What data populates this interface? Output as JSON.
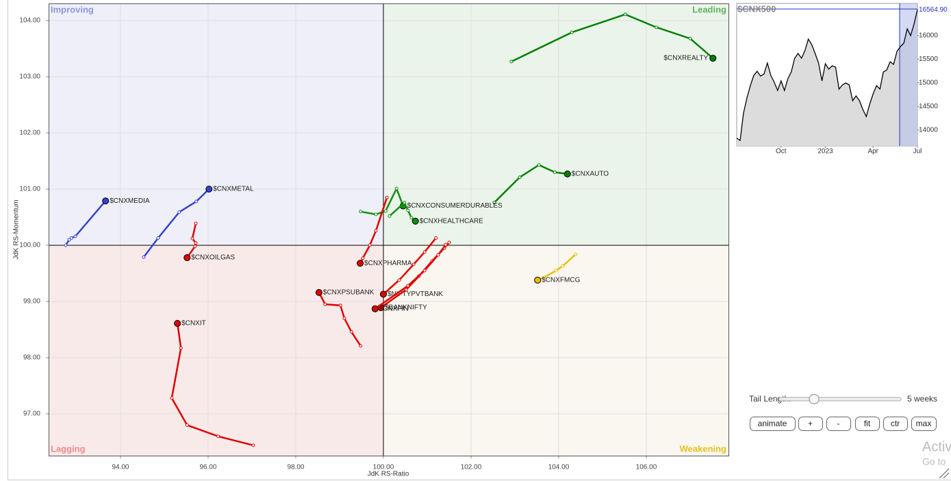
{
  "chart_data": [
    {
      "type": "rrg",
      "x_label": "JdK RS-Ratio",
      "y_label": "JdK RS-Momentum",
      "xlim": [
        92.36,
        107.875
      ],
      "ylim": [
        96.256,
        104.305
      ],
      "xticks": [
        {
          "value": 94,
          "label": "94.00"
        },
        {
          "value": 96,
          "label": "96.00"
        },
        {
          "value": 98,
          "label": "98.00"
        },
        {
          "value": 100,
          "label": "100.00"
        },
        {
          "value": 102,
          "label": "102.00"
        },
        {
          "value": 104,
          "label": "104.00"
        },
        {
          "value": 106,
          "label": "106.00"
        }
      ],
      "yticks": [
        {
          "value": 97,
          "label": "97.00"
        },
        {
          "value": 98,
          "label": "98.00"
        },
        {
          "value": 99,
          "label": "99.00"
        },
        {
          "value": 100,
          "label": "100.00"
        },
        {
          "value": 101,
          "label": "101.00"
        },
        {
          "value": 102,
          "label": "102.00"
        },
        {
          "value": 103,
          "label": "103.00"
        },
        {
          "value": 104,
          "label": "104.00"
        }
      ],
      "grid": true,
      "center": [
        100,
        100
      ],
      "quadrants": [
        "Improving",
        "Leading",
        "Lagging",
        "Weakening"
      ],
      "quadrant_colors": [
        "#8a96d8",
        "#5fb35f",
        "#f08a8a",
        "#e6c020"
      ],
      "quadrant_fills": [
        "#efeff9",
        "#ebf4eb",
        "#f9eaea",
        "#f9f7ef"
      ],
      "series": [
        {
          "name": "$CNXREALTY",
          "color": "#008000",
          "x": [
            102.92,
            104.3,
            105.52,
            106.23,
            107.0,
            107.52
          ],
          "y": [
            103.27,
            103.79,
            104.11,
            103.88,
            103.68,
            103.33
          ]
        },
        {
          "name": "$CNXAUTO",
          "color": "#008000",
          "x": [
            102.53,
            103.11,
            103.55,
            103.91,
            104.2
          ],
          "y": [
            100.76,
            101.21,
            101.43,
            101.3,
            101.27
          ]
        },
        {
          "name": "$CNXCONSUMERDURABLES",
          "color": "#109010",
          "x": [
            99.48,
            99.83,
            100.05,
            100.3,
            100.45
          ],
          "y": [
            100.6,
            100.55,
            100.61,
            101.01,
            100.7
          ]
        },
        {
          "name": "$CNXHEALTHCARE",
          "color": "#109010",
          "x": [
            100.14,
            100.48,
            100.56,
            100.64,
            100.73
          ],
          "y": [
            100.52,
            100.76,
            100.62,
            100.49,
            100.43
          ]
        },
        {
          "name": "$CNXMEDIA",
          "color": "#3344cc",
          "x": [
            92.75,
            92.83,
            92.88,
            92.97,
            93.66
          ],
          "y": [
            100.0,
            100.1,
            100.13,
            100.16,
            100.79
          ]
        },
        {
          "name": "$CNXMETAL",
          "color": "#3344cc",
          "x": [
            94.53,
            94.86,
            95.34,
            95.73,
            96.02
          ],
          "y": [
            99.79,
            100.13,
            100.59,
            100.78,
            101.0
          ]
        },
        {
          "name": "$CNXOILGAS",
          "color": "#e00000",
          "x": [
            95.72,
            95.64,
            95.72,
            95.7,
            95.52
          ],
          "y": [
            100.39,
            100.12,
            100.04,
            99.98,
            99.78
          ]
        },
        {
          "name": "$CNXIT",
          "color": "#e00000",
          "x": [
            97.03,
            96.23,
            95.52,
            95.17,
            95.38,
            95.3
          ],
          "y": [
            96.44,
            96.6,
            96.8,
            97.28,
            98.17,
            98.61
          ]
        },
        {
          "name": "$CNXPHARMA",
          "color": "#e00000",
          "x": [
            100.08,
            99.83,
            99.69,
            99.53,
            99.47
          ],
          "y": [
            100.85,
            100.26,
            100.0,
            99.77,
            99.68
          ]
        },
        {
          "name": "$CNXPSUBANK",
          "color": "#e00000",
          "x": [
            99.48,
            99.27,
            99.11,
            99.02,
            98.67,
            98.53
          ],
          "y": [
            98.21,
            98.46,
            98.7,
            98.93,
            98.95,
            99.16
          ]
        },
        {
          "name": "$NIFTYPVTBANK",
          "color": "#e00000",
          "x": [
            101.2,
            100.94,
            100.69,
            100.36,
            100.0
          ],
          "y": [
            100.13,
            99.88,
            99.66,
            99.38,
            99.13
          ]
        },
        {
          "name": "$BANKNIFTY",
          "color": "#e00000",
          "x": [
            101.5,
            101.39,
            101.11,
            100.81,
            100.52,
            99.94
          ],
          "y": [
            100.05,
            99.95,
            99.72,
            99.45,
            99.21,
            98.89
          ]
        },
        {
          "name": "$CNXFIN",
          "color": "#e00000",
          "x": [
            101.42,
            101.25,
            100.94,
            100.56,
            99.81
          ],
          "y": [
            100.01,
            99.83,
            99.55,
            99.28,
            98.87
          ]
        },
        {
          "name": "$CNXFMCG",
          "color": "#e6c000",
          "x": [
            104.39,
            104.09,
            103.94,
            103.67,
            103.52
          ],
          "y": [
            99.84,
            99.63,
            99.55,
            99.43,
            99.38
          ]
        }
      ]
    },
    {
      "type": "line",
      "title": "$CNX500",
      "color": "#000000",
      "fill": "#dcdcdc",
      "categories": [
        null,
        null,
        null,
        null,
        null,
        null,
        null,
        null,
        null,
        null,
        null,
        null,
        null,
        "Oct",
        null,
        null,
        null,
        null,
        null,
        null,
        null,
        null,
        null,
        null,
        null,
        null,
        "2023",
        null,
        null,
        null,
        null,
        null,
        null,
        null,
        null,
        null,
        null,
        null,
        null,
        null,
        "Apr",
        null,
        null,
        null,
        null,
        null,
        null,
        null,
        null,
        null,
        null,
        null,
        null,
        "Jul"
      ],
      "values": [
        13826,
        13777,
        14358,
        14678,
        14939,
        15157,
        15244,
        15143,
        15186,
        15419,
        15157,
        15012,
        14838,
        15041,
        14838,
        15085,
        15230,
        15521,
        15622,
        15521,
        15680,
        15927,
        15811,
        15622,
        15419,
        15041,
        15404,
        15288,
        15361,
        15332,
        14867,
        14954,
        14997,
        14954,
        14620,
        14722,
        14620,
        14431,
        14285,
        14547,
        14765,
        14939,
        14867,
        15230,
        15273,
        15448,
        15390,
        15666,
        15768,
        15840,
        16145,
        16000,
        16247,
        16552
      ],
      "ylim": [
        13661,
        16683
      ],
      "yticks": [
        14000,
        14500,
        15000,
        15500,
        16000
      ],
      "last_price": {
        "value": 16564.9,
        "label": "16564.90"
      }
    }
  ],
  "controls": {
    "tail_label": "Tail Length:",
    "tail_value": "5 weeks",
    "buttons": [
      "animate",
      "+",
      "-",
      "fit",
      "ctr",
      "max"
    ]
  },
  "watermark": [
    "Activ",
    "Go to"
  ]
}
